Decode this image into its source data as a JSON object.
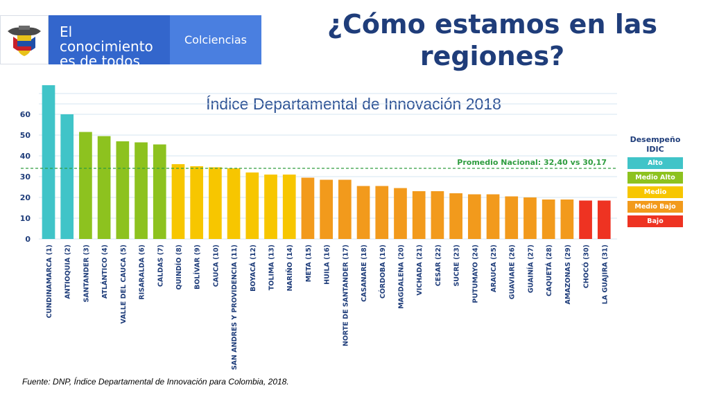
{
  "header": {
    "slogan_line1": "El conocimiento",
    "slogan_line2": "es de todos",
    "brand": "Colciencias",
    "title_line1": "¿Cómo estamos en las",
    "title_line2": "regiones?"
  },
  "legend": {
    "title_line1": "Desempeño",
    "title_line2": "IDIC",
    "items": [
      {
        "label": "Alto",
        "color": "#40c4c8"
      },
      {
        "label": "Medio Alto",
        "color": "#8dc21f"
      },
      {
        "label": "Medio",
        "color": "#f7c600"
      },
      {
        "label": "Medio Bajo",
        "color": "#f29a1c"
      },
      {
        "label": "Bajo",
        "color": "#ee3322"
      }
    ]
  },
  "source": "Fuente: DNP, Índice Departamental de Innovación para Colombia, 2018.",
  "chart_data": {
    "type": "bar",
    "title": "Índice Departamental de Innovación 2018",
    "xlabel": "",
    "ylabel": "",
    "ylim": [
      0,
      70
    ],
    "yticks": [
      0,
      10,
      20,
      30,
      40,
      50,
      60
    ],
    "grid": true,
    "legend_position": "right",
    "reference_line": {
      "value": 34,
      "label": "Promedio Nacional: 32,40 vs 30,17",
      "color": "#2e9c3f"
    },
    "categories": [
      "CUNDINAMARCA (1)",
      "ANTIOQUIA (2)",
      "SANTANDER (3)",
      "ATLÁNTICO (4)",
      "VALLE DEL CAUCA (5)",
      "RISARALDA (6)",
      "CALDAS (7)",
      "QUINDÍO (8)",
      "BOLÍVAR (9)",
      "CAUCA (10)",
      "SAN ANDRES Y PROVIDENCIA (11)",
      "BOYACÁ (12)",
      "TOLIMA (13)",
      "NARIÑO (14)",
      "META (15)",
      "HUILA (16)",
      "NORTE DE SANTANDER (17)",
      "CASANARE (18)",
      "CÓRDOBA (19)",
      "MAGDALENA (20)",
      "VICHADA (21)",
      "CESAR (22)",
      "SUCRE (23)",
      "PUTUMAYO (24)",
      "ARAUCA (25)",
      "GUAVIARE (26)",
      "GUAINÍA (27)",
      "CAQUETÁ (28)",
      "AMAZONAS (29)",
      "CHOCÓ (30)",
      "LA GUAJIRA (31)"
    ],
    "values": [
      74,
      60,
      51.5,
      49.5,
      47,
      46.5,
      45.5,
      36,
      35,
      34.5,
      34,
      32,
      31,
      31,
      29.5,
      28.5,
      28.5,
      25.5,
      25.5,
      24.5,
      23,
      23,
      22,
      21.5,
      21.5,
      20.5,
      20,
      19,
      19,
      18.5,
      18.5
    ],
    "performance": [
      "Alto",
      "Alto",
      "Medio Alto",
      "Medio Alto",
      "Medio Alto",
      "Medio Alto",
      "Medio Alto",
      "Medio",
      "Medio",
      "Medio",
      "Medio",
      "Medio",
      "Medio",
      "Medio",
      "Medio Bajo",
      "Medio Bajo",
      "Medio Bajo",
      "Medio Bajo",
      "Medio Bajo",
      "Medio Bajo",
      "Medio Bajo",
      "Medio Bajo",
      "Medio Bajo",
      "Medio Bajo",
      "Medio Bajo",
      "Medio Bajo",
      "Medio Bajo",
      "Medio Bajo",
      "Medio Bajo",
      "Bajo",
      "Bajo"
    ]
  }
}
